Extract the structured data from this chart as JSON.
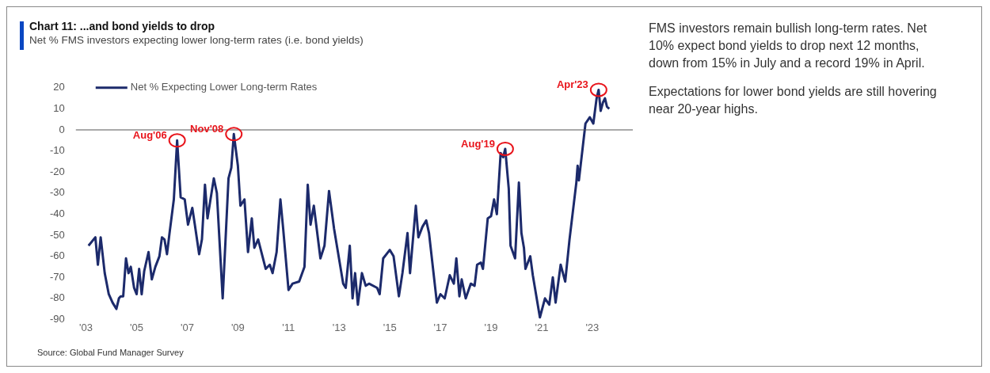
{
  "chart_data": {
    "type": "line",
    "title": "Chart 11: ...and bond yields to drop",
    "subtitle": "Net % FMS investors expecting lower long-term rates (i.e. bond yields)",
    "series": [
      {
        "name": "Net % Expecting Lower Long-term Rates",
        "color": "#1c2a6b",
        "x": [
          2003.1,
          2003.37,
          2003.47,
          2003.58,
          2003.74,
          2003.9,
          2004.05,
          2004.2,
          2004.3,
          2004.37,
          2004.47,
          2004.58,
          2004.68,
          2004.77,
          2004.9,
          2005.0,
          2005.1,
          2005.2,
          2005.3,
          2005.47,
          2005.6,
          2005.74,
          2005.9,
          2006.0,
          2006.1,
          2006.2,
          2006.3,
          2006.47,
          2006.6,
          2006.74,
          2006.9,
          2007.03,
          2007.2,
          2007.3,
          2007.47,
          2007.58,
          2007.7,
          2007.8,
          2008.05,
          2008.17,
          2008.4,
          2008.63,
          2008.74,
          2008.84,
          2009.0,
          2009.1,
          2009.26,
          2009.4,
          2009.55,
          2009.65,
          2009.8,
          2010.1,
          2010.26,
          2010.37,
          2010.53,
          2010.68,
          2010.79,
          2011.0,
          2011.16,
          2011.42,
          2011.63,
          2011.76,
          2011.87,
          2012.0,
          2012.26,
          2012.42,
          2012.6,
          2012.8,
          2013.16,
          2013.26,
          2013.42,
          2013.53,
          2013.63,
          2013.74,
          2013.9,
          2014.05,
          2014.18,
          2014.5,
          2014.6,
          2014.74,
          2015.0,
          2015.15,
          2015.36,
          2015.5,
          2015.7,
          2015.8,
          2016.03,
          2016.13,
          2016.29,
          2016.44,
          2016.55,
          2016.86,
          2017.0,
          2017.17,
          2017.37,
          2017.53,
          2017.63,
          2017.75,
          2017.84,
          2018.0,
          2018.2,
          2018.35,
          2018.45,
          2018.6,
          2018.68,
          2018.87,
          2019.0,
          2019.12,
          2019.23,
          2019.38,
          2019.48,
          2019.56,
          2019.7,
          2019.77,
          2019.95,
          2020.1,
          2020.2,
          2020.3,
          2020.36,
          2020.55,
          2020.65,
          2020.93,
          2021.13,
          2021.3,
          2021.44,
          2021.55,
          2021.75,
          2021.93,
          2022.1,
          2022.27,
          2022.37,
          2022.42,
          2022.47,
          2022.73,
          2022.9,
          2023.04,
          2023.17,
          2023.25,
          2023.33,
          2023.42,
          2023.5,
          2023.58,
          2023.67
        ],
        "values": [
          -55,
          -51,
          -64,
          -51,
          -68,
          -78,
          -82,
          -85,
          -80,
          -79,
          -79,
          -61,
          -68,
          -65,
          -75,
          -78,
          -66,
          -78,
          -67,
          -58,
          -71,
          -65,
          -60,
          -51,
          -52,
          -59,
          -49,
          -33,
          -5,
          -32,
          -33,
          -45,
          -37,
          -45,
          -59,
          -52,
          -26,
          -42,
          -23,
          -30,
          -80,
          -23,
          -18,
          -2,
          -17,
          -36,
          -33,
          -58,
          -42,
          -56,
          -52,
          -66,
          -64,
          -68,
          -58,
          -33,
          -47,
          -76,
          -73,
          -72,
          -65,
          -26,
          -45,
          -36,
          -61,
          -55,
          -29,
          -47,
          -73,
          -75,
          -55,
          -80,
          -68,
          -83,
          -68,
          -74,
          -73,
          -75,
          -78,
          -61,
          -57,
          -60,
          -79,
          -68,
          -49,
          -68,
          -36,
          -51,
          -46,
          -43,
          -49,
          -82,
          -78,
          -80,
          -69,
          -73,
          -61,
          -79,
          -71,
          -80,
          -73,
          -74,
          -64,
          -63,
          -66,
          -42,
          -41,
          -33,
          -40,
          -11,
          -13,
          -9,
          -28,
          -55,
          -61,
          -25,
          -49,
          -56,
          -66,
          -60,
          -69,
          -89,
          -80,
          -83,
          -70,
          -82,
          -64,
          -72,
          -52,
          -35,
          -25,
          -17,
          -24,
          3,
          6,
          3,
          15,
          19,
          9,
          13,
          15,
          11,
          10
        ]
      }
    ],
    "xlim": [
      2002.6,
      2024.6
    ],
    "xticks": [
      {
        "value": 2003,
        "label": "'03"
      },
      {
        "value": 2005,
        "label": "'05"
      },
      {
        "value": 2007,
        "label": "'07"
      },
      {
        "value": 2009,
        "label": "'09"
      },
      {
        "value": 2011,
        "label": "'11"
      },
      {
        "value": 2013,
        "label": "'13"
      },
      {
        "value": 2015,
        "label": "'15"
      },
      {
        "value": 2017,
        "label": "'17"
      },
      {
        "value": 2019,
        "label": "'19"
      },
      {
        "value": 2021,
        "label": "'21"
      },
      {
        "value": 2023,
        "label": "'23"
      }
    ],
    "ylim": [
      -90,
      20
    ],
    "yticks": [
      20,
      10,
      0,
      -10,
      -20,
      -30,
      -40,
      -50,
      -60,
      -70,
      -80,
      -90
    ],
    "ref_lines": [
      {
        "axis": "y",
        "value": 0,
        "color": "#555555"
      }
    ],
    "legend": "top left",
    "grid": false,
    "marker": "none",
    "line_style": "solid",
    "annotations": [
      {
        "text": "Aug'06",
        "x": 2006.6,
        "y": -5
      },
      {
        "text": "Nov'08",
        "x": 2008.84,
        "y": -2
      },
      {
        "text": "Aug'19",
        "x": 2019.56,
        "y": -9
      },
      {
        "text": "Apr'23",
        "x": 2023.25,
        "y": 19
      },
      "FMS investors remain bullish long-term rates. Net 10% expect bond yields to drop next 12 months, down from 15% in July and a record 19% in April.",
      "Expectations for lower bond yields are still hovering near 20-year highs.",
      "Source: Global Fund Manager Survey"
    ]
  }
}
